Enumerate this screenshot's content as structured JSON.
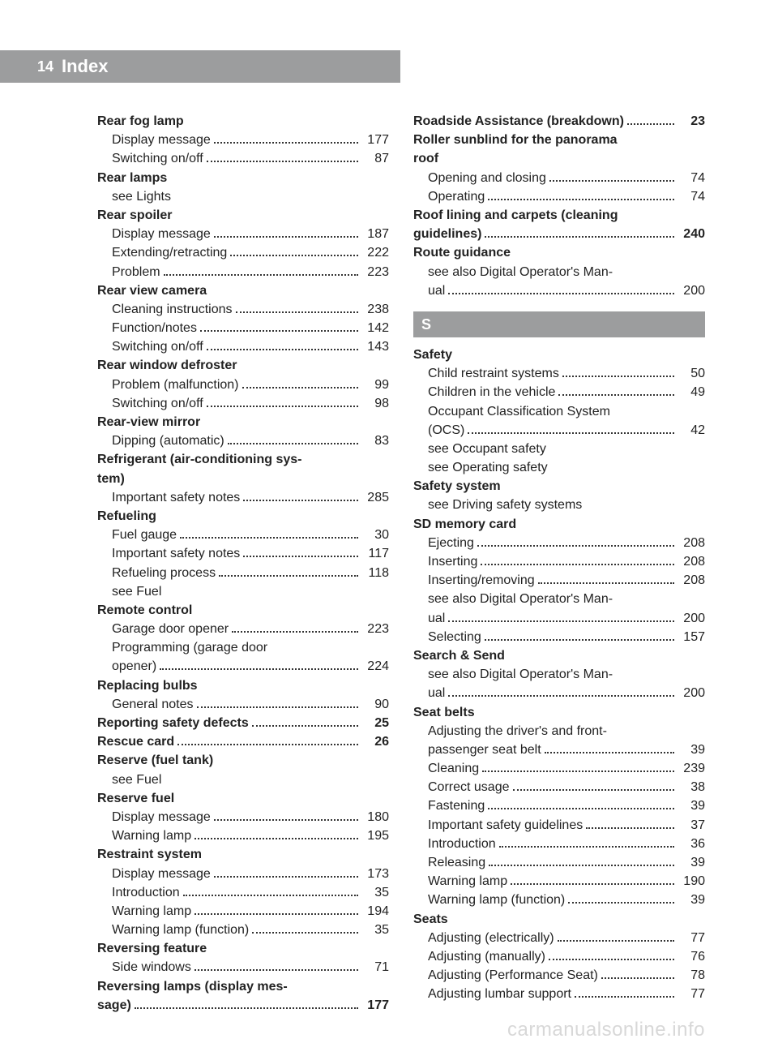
{
  "header": {
    "page_number": "14",
    "title": "Index"
  },
  "watermark": "carmanualsonline.info",
  "col_left": [
    {
      "type": "head",
      "label": "Rear fog lamp"
    },
    {
      "type": "sub",
      "label": "Display message",
      "pg": "177"
    },
    {
      "type": "sub",
      "label": "Switching on/off",
      "pg": "87"
    },
    {
      "type": "head",
      "label": "Rear lamps"
    },
    {
      "type": "subnd",
      "label": "see Lights"
    },
    {
      "type": "head",
      "label": "Rear spoiler"
    },
    {
      "type": "sub",
      "label": "Display message",
      "pg": "187"
    },
    {
      "type": "sub",
      "label": "Extending/retracting",
      "pg": "222"
    },
    {
      "type": "sub",
      "label": "Problem",
      "pg": "223"
    },
    {
      "type": "head",
      "label": "Rear view camera"
    },
    {
      "type": "sub",
      "label": "Cleaning instructions",
      "pg": "238"
    },
    {
      "type": "sub",
      "label": "Function/notes",
      "pg": "142"
    },
    {
      "type": "sub",
      "label": "Switching on/off",
      "pg": "143"
    },
    {
      "type": "head",
      "label": "Rear window defroster"
    },
    {
      "type": "sub",
      "label": "Problem (malfunction)",
      "pg": "99"
    },
    {
      "type": "sub",
      "label": "Switching on/off",
      "pg": "98"
    },
    {
      "type": "head",
      "label": "Rear-view mirror"
    },
    {
      "type": "sub",
      "label": "Dipping (automatic)",
      "pg": "83"
    },
    {
      "type": "head",
      "label": "Refrigerant (air-conditioning sys-"
    },
    {
      "type": "headcont",
      "label": "tem)"
    },
    {
      "type": "sub",
      "label": "Important safety notes",
      "pg": "285"
    },
    {
      "type": "head",
      "label": "Refueling"
    },
    {
      "type": "sub",
      "label": "Fuel gauge",
      "pg": "30"
    },
    {
      "type": "sub",
      "label": "Important safety notes",
      "pg": "117"
    },
    {
      "type": "sub",
      "label": "Refueling process",
      "pg": "118"
    },
    {
      "type": "subnd",
      "label": "see Fuel"
    },
    {
      "type": "head",
      "label": "Remote control"
    },
    {
      "type": "sub",
      "label": "Garage door opener",
      "pg": "223"
    },
    {
      "type": "subnd",
      "label": "Programming (garage door"
    },
    {
      "type": "sub",
      "label": "opener)",
      "pg": "224"
    },
    {
      "type": "head",
      "label": "Replacing bulbs"
    },
    {
      "type": "sub",
      "label": "General notes",
      "pg": "90"
    },
    {
      "type": "headpg",
      "label": "Reporting safety defects",
      "pg": "25"
    },
    {
      "type": "headpg",
      "label": "Rescue card",
      "pg": "26"
    },
    {
      "type": "head",
      "label": "Reserve (fuel tank)"
    },
    {
      "type": "subnd",
      "label": "see Fuel"
    },
    {
      "type": "head",
      "label": "Reserve fuel"
    },
    {
      "type": "sub",
      "label": "Display message",
      "pg": "180"
    },
    {
      "type": "sub",
      "label": "Warning lamp",
      "pg": "195"
    },
    {
      "type": "head",
      "label": "Restraint system"
    },
    {
      "type": "sub",
      "label": "Display message",
      "pg": "173"
    },
    {
      "type": "sub",
      "label": "Introduction",
      "pg": "35"
    },
    {
      "type": "sub",
      "label": "Warning lamp",
      "pg": "194"
    },
    {
      "type": "sub",
      "label": "Warning lamp (function)",
      "pg": "35"
    },
    {
      "type": "head",
      "label": "Reversing feature"
    },
    {
      "type": "sub",
      "label": "Side windows",
      "pg": "71"
    },
    {
      "type": "head",
      "label": "Reversing lamps (display mes-"
    },
    {
      "type": "headpg",
      "label": "sage)",
      "pg": "177"
    }
  ],
  "col_right": [
    {
      "type": "headpg",
      "label": "Roadside Assistance (breakdown)",
      "pg": "23"
    },
    {
      "type": "head",
      "label": "Roller sunblind for the panorama"
    },
    {
      "type": "headcont",
      "label": "roof"
    },
    {
      "type": "sub",
      "label": "Opening and closing",
      "pg": "74"
    },
    {
      "type": "sub",
      "label": "Operating",
      "pg": "74"
    },
    {
      "type": "head",
      "label": "Roof lining and carpets (cleaning"
    },
    {
      "type": "headpg",
      "label": "guidelines)",
      "pg": "240"
    },
    {
      "type": "head",
      "label": "Route guidance"
    },
    {
      "type": "subnd",
      "label": "see also Digital Operator's Man-"
    },
    {
      "type": "sub",
      "label": "ual",
      "pg": "200"
    },
    {
      "type": "letter",
      "label": "S"
    },
    {
      "type": "head",
      "label": "Safety"
    },
    {
      "type": "sub",
      "label": "Child restraint systems",
      "pg": "50"
    },
    {
      "type": "sub",
      "label": "Children in the vehicle",
      "pg": "49"
    },
    {
      "type": "subnd",
      "label": "Occupant Classification System"
    },
    {
      "type": "sub",
      "label": "(OCS)",
      "pg": "42"
    },
    {
      "type": "subnd",
      "label": "see Occupant safety"
    },
    {
      "type": "subnd",
      "label": "see Operating safety"
    },
    {
      "type": "head",
      "label": "Safety system"
    },
    {
      "type": "subnd",
      "label": "see Driving safety systems"
    },
    {
      "type": "head",
      "label": "SD memory card"
    },
    {
      "type": "sub",
      "label": "Ejecting",
      "pg": "208"
    },
    {
      "type": "sub",
      "label": "Inserting",
      "pg": "208"
    },
    {
      "type": "sub",
      "label": "Inserting/removing",
      "pg": "208"
    },
    {
      "type": "subnd",
      "label": "see also Digital Operator's Man-"
    },
    {
      "type": "sub",
      "label": "ual",
      "pg": "200"
    },
    {
      "type": "sub",
      "label": "Selecting",
      "pg": "157"
    },
    {
      "type": "head",
      "label": "Search & Send"
    },
    {
      "type": "subnd",
      "label": "see also Digital Operator's Man-"
    },
    {
      "type": "sub",
      "label": "ual",
      "pg": "200"
    },
    {
      "type": "head",
      "label": "Seat belts"
    },
    {
      "type": "subnd",
      "label": "Adjusting the driver's and front-"
    },
    {
      "type": "sub",
      "label": "passenger seat belt",
      "pg": "39"
    },
    {
      "type": "sub",
      "label": "Cleaning",
      "pg": "239"
    },
    {
      "type": "sub",
      "label": "Correct usage",
      "pg": "38"
    },
    {
      "type": "sub",
      "label": "Fastening",
      "pg": "39"
    },
    {
      "type": "sub",
      "label": "Important safety guidelines",
      "pg": "37"
    },
    {
      "type": "sub",
      "label": "Introduction",
      "pg": "36"
    },
    {
      "type": "sub",
      "label": "Releasing",
      "pg": "39"
    },
    {
      "type": "sub",
      "label": "Warning lamp",
      "pg": "190"
    },
    {
      "type": "sub",
      "label": "Warning lamp (function)",
      "pg": "39"
    },
    {
      "type": "head",
      "label": "Seats"
    },
    {
      "type": "sub",
      "label": "Adjusting (electrically)",
      "pg": "77"
    },
    {
      "type": "sub",
      "label": "Adjusting (manually)",
      "pg": "76"
    },
    {
      "type": "sub",
      "label": "Adjusting (Performance Seat)",
      "pg": "78"
    },
    {
      "type": "sub",
      "label": "Adjusting lumbar support",
      "pg": "77"
    }
  ]
}
